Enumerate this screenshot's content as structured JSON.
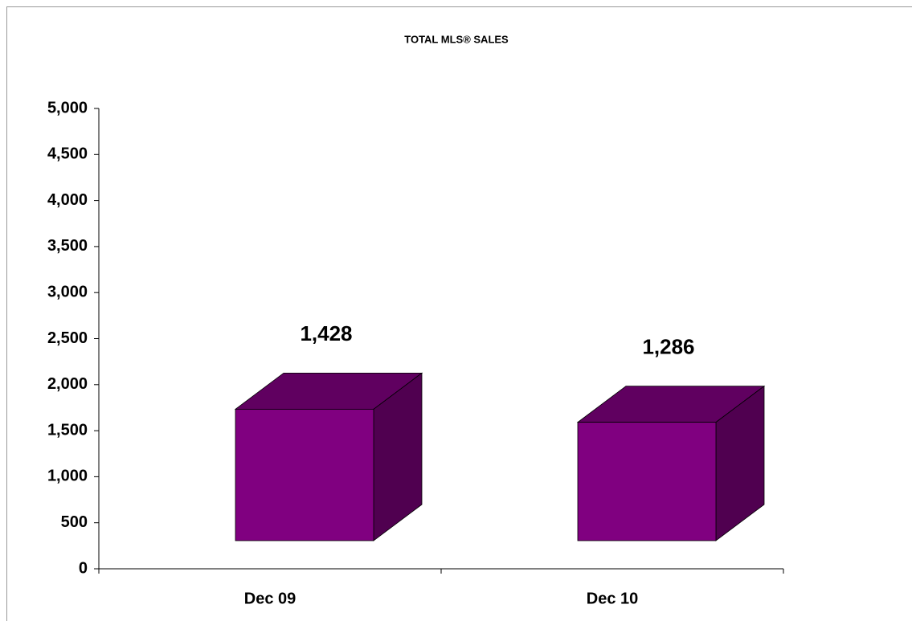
{
  "chart_data": {
    "type": "bar3d",
    "title": "TOTAL MLS® SALES",
    "categories": [
      "Dec 09",
      "Dec 10"
    ],
    "values": [
      1428,
      1286
    ],
    "value_labels": [
      "1,428",
      "1,286"
    ],
    "colors": {
      "front": "#800080",
      "top": "#600060",
      "side": "#500050"
    },
    "ylim": [
      0,
      5000
    ],
    "yticks": [
      0,
      500,
      {
        "value": 1000,
        "label": "1,000"
      },
      {
        "value": 1500,
        "label": "1,500"
      },
      {
        "value": 2000,
        "label": "2,000"
      },
      {
        "value": 2500,
        "label": "2,500"
      },
      {
        "value": 3000,
        "label": "3,000"
      },
      {
        "value": 3500,
        "label": "3,500"
      },
      {
        "value": 4000,
        "label": "4,000"
      },
      {
        "value": 4500,
        "label": "4,500"
      },
      {
        "value": 5000,
        "label": "5,000"
      }
    ]
  }
}
